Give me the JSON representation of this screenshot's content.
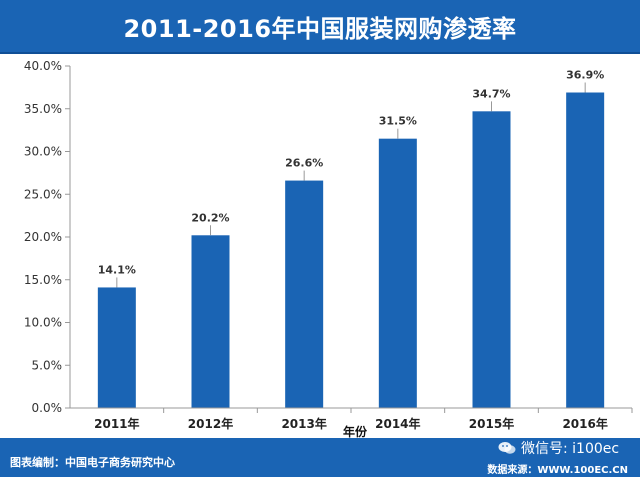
{
  "header": {
    "title": "2011-2016年中国服装网购渗透率"
  },
  "footer": {
    "compiled_by": "图表编制：中国电子商务研究中心",
    "source": "数据来源：WWW.100EC.CN",
    "watermark": "微信号: i100ec"
  },
  "colors": {
    "header_bg": "#1a64b4",
    "bar": "#1a64b4",
    "axis": "#999999"
  },
  "chart_data": {
    "type": "bar",
    "title": "2011-2016年中国服装网购渗透率",
    "xlabel": "年份",
    "ylabel": "",
    "categories": [
      "2011年",
      "2012年",
      "2013年",
      "2014年",
      "2015年",
      "2016年"
    ],
    "values": [
      14.1,
      20.2,
      26.6,
      31.5,
      34.7,
      36.9
    ],
    "value_labels": [
      "14.1%",
      "20.2%",
      "26.6%",
      "31.5%",
      "34.7%",
      "36.9%"
    ],
    "yticks": [
      "0.0%",
      "5.0%",
      "10.0%",
      "15.0%",
      "20.0%",
      "25.0%",
      "30.0%",
      "35.0%",
      "40.0%"
    ],
    "ylim": [
      0,
      40
    ],
    "grid": false,
    "legend": "none"
  }
}
